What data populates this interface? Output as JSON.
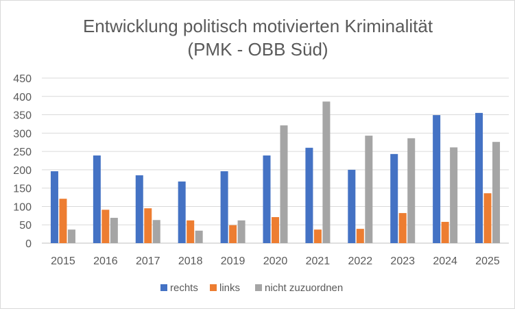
{
  "chart_data": {
    "type": "bar",
    "title": "Entwicklung politisch motivierten Kriminalität",
    "subtitle": "(PMK - OBB Süd)",
    "categories": [
      "2015",
      "2016",
      "2017",
      "2018",
      "2019",
      "2020",
      "2021",
      "2022",
      "2023",
      "2024",
      "2025"
    ],
    "series": [
      {
        "name": "rechts",
        "color": "#4472C4",
        "values": [
          196,
          239,
          185,
          168,
          196,
          239,
          260,
          200,
          243,
          349,
          355
        ]
      },
      {
        "name": "links",
        "color": "#ED7D31",
        "values": [
          121,
          91,
          95,
          62,
          49,
          71,
          37,
          39,
          82,
          58,
          136
        ]
      },
      {
        "name": "nicht zuzuordnen",
        "color": "#A5A5A5",
        "values": [
          37,
          69,
          63,
          34,
          62,
          321,
          386,
          293,
          286,
          261,
          276
        ]
      }
    ],
    "legend_labels": [
      "rechts",
      "links",
      "nicht zuzuordnen"
    ],
    "yticks": [
      "0",
      "50",
      "100",
      "150",
      "200",
      "250",
      "300",
      "350",
      "400",
      "450"
    ],
    "ylim": [
      0,
      450
    ],
    "xlabel": "",
    "ylabel": "",
    "grid": true,
    "legend": "bottom"
  }
}
